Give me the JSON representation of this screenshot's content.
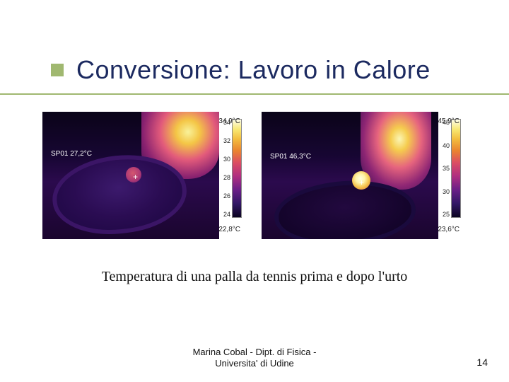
{
  "title": "Conversione: Lavoro in Calore",
  "caption": "Temperatura di una palla da tennis prima e dopo l'urto",
  "footer_line1": "Marina Cobal - Dipt. di Fisica -",
  "footer_line2": "Universita' di Udine",
  "page_number": "14",
  "panel_left": {
    "sp_label": "SP01 27,2°C",
    "cb_max": "34,9°C",
    "cb_min": "22,8°C",
    "ticks": [
      "34",
      "32",
      "30",
      "28",
      "26",
      "24"
    ]
  },
  "panel_right": {
    "sp_label": "SP01 46,3°C",
    "cb_max": "45,9°C",
    "cb_min": "23,6°C",
    "ticks": [
      "45",
      "40",
      "35",
      "30",
      "25"
    ]
  },
  "colors": {
    "title": "#1c2a60",
    "accent": "#a0b870"
  }
}
